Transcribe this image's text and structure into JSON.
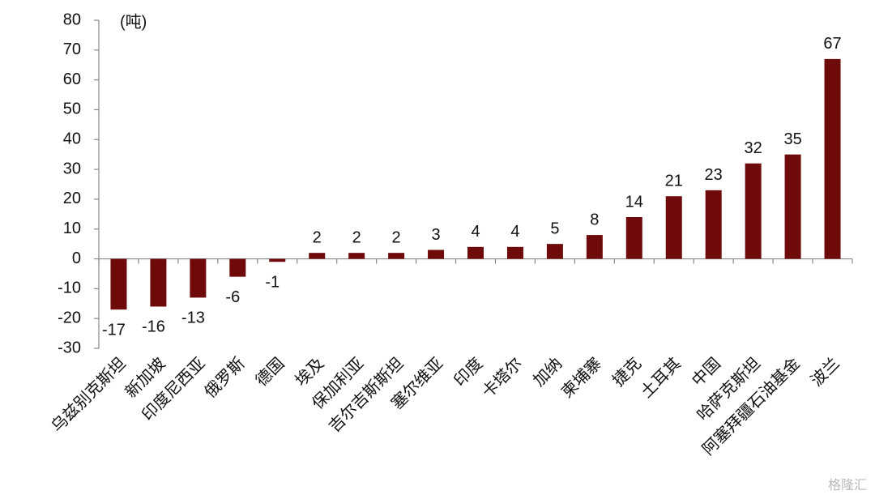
{
  "chart_data": {
    "type": "bar",
    "unit_label": "(吨)",
    "categories": [
      "乌兹别克斯坦",
      "新加坡",
      "印度尼西亚",
      "俄罗斯",
      "德国",
      "埃及",
      "保加利亚",
      "吉尔吉斯斯坦",
      "塞尔维亚",
      "印度",
      "卡塔尔",
      "加纳",
      "柬埔寨",
      "捷克",
      "土耳其",
      "中国",
      "哈萨克斯坦",
      "阿塞拜疆石油基金",
      "波兰"
    ],
    "values": [
      -17,
      -16,
      -13,
      -6,
      -1,
      2,
      2,
      2,
      3,
      4,
      4,
      5,
      8,
      14,
      21,
      23,
      32,
      35,
      67
    ],
    "color": "#6e0a0a",
    "ylim": [
      -30,
      80
    ],
    "yticks": [
      -30,
      -20,
      -10,
      0,
      10,
      20,
      30,
      40,
      50,
      60,
      70,
      80
    ],
    "grid": false
  },
  "watermark": "格隆汇"
}
